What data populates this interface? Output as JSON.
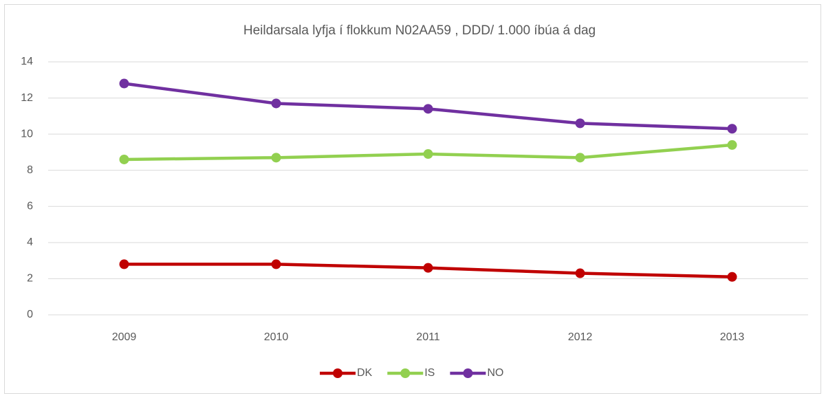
{
  "chart_data": {
    "type": "line",
    "title": "Heildarsala lyfja í flokkum N02AA59 , DDD/ 1.000 íbúa á dag",
    "categories": [
      "2009",
      "2010",
      "2011",
      "2012",
      "2013"
    ],
    "series": [
      {
        "name": "DK",
        "color": "#c00000",
        "values": [
          2.8,
          2.8,
          2.6,
          2.3,
          2.1
        ]
      },
      {
        "name": "IS",
        "color": "#92d050",
        "values": [
          8.6,
          8.7,
          8.9,
          8.7,
          9.4
        ]
      },
      {
        "name": "NO",
        "color": "#7030a0",
        "values": [
          12.8,
          11.7,
          11.4,
          10.6,
          10.3
        ]
      }
    ],
    "ylim": [
      0,
      14
    ],
    "yticks": [
      0,
      2,
      4,
      6,
      8,
      10,
      12,
      14
    ],
    "grid": true,
    "legend": "bottom"
  }
}
